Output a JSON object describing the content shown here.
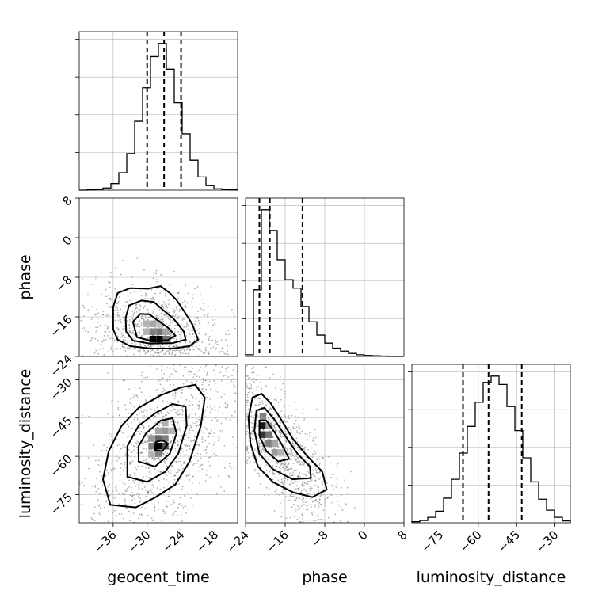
{
  "chart_data": {
    "type": "corner",
    "parameters": [
      "geocent_time",
      "phase",
      "luminosity_distance"
    ],
    "axis_labels": {
      "x": [
        "geocent_time",
        "phase",
        "luminosity_distance"
      ],
      "y": [
        "",
        "phase",
        "luminosity_distance"
      ]
    },
    "ranges": {
      "geocent_time": [
        -42,
        -14
      ],
      "phase": [
        -24,
        8
      ],
      "luminosity_distance": [
        -86,
        -24
      ]
    },
    "ticks": {
      "geocent_time": {
        "values": [
          -36,
          -30,
          -24,
          -18
        ],
        "labels": [
          "−36",
          "−30",
          "−24",
          "−18"
        ]
      },
      "phase": {
        "values": [
          -24,
          -16,
          -8,
          0,
          8
        ],
        "labels": [
          "−24",
          "−16",
          "−8",
          "0",
          "8"
        ]
      },
      "luminosity_distance": {
        "values": [
          -75,
          -60,
          -45,
          -30
        ],
        "labels": [
          "−75",
          "−60",
          "−45",
          "−30"
        ]
      }
    },
    "grid": true,
    "marginals": [
      {
        "parameter": "geocent_time",
        "bin_edges": [
          -42,
          -40.6,
          -39.2,
          -37.8,
          -36.4,
          -35,
          -33.6,
          -32.2,
          -30.8,
          -29.4,
          -28,
          -26.6,
          -25.2,
          -23.8,
          -22.4,
          -21,
          -19.6,
          -18.2,
          -16.8,
          -15.4,
          -14
        ],
        "counts": [
          0,
          2,
          5,
          18,
          55,
          145,
          305,
          575,
          855,
          1115,
          1225,
          1010,
          730,
          470,
          250,
          110,
          38,
          11,
          4,
          2
        ],
        "quantiles": [
          -30,
          -27,
          -24
        ]
      },
      {
        "parameter": "phase",
        "bin_edges": [
          -24,
          -22.4,
          -20.8,
          -19.2,
          -17.6,
          -16,
          -14.4,
          -12.8,
          -11.2,
          -9.6,
          -8,
          -6.4,
          -4.8,
          -3.2,
          -1.6,
          0,
          1.6,
          3.2,
          4.8,
          6.4,
          8
        ],
        "counts": [
          5,
          200,
          440,
          378,
          290,
          230,
          205,
          150,
          104,
          64,
          40,
          25,
          16,
          9,
          5,
          3,
          2,
          1,
          0,
          0
        ],
        "quantiles": [
          -21.2,
          -19.1,
          -12.5
        ]
      },
      {
        "parameter": "luminosity_distance",
        "bin_edges": [
          -86,
          -82.9,
          -79.8,
          -76.7,
          -73.6,
          -70.5,
          -67.4,
          -64.3,
          -61.2,
          -58.1,
          -55,
          -51.9,
          -48.8,
          -45.7,
          -42.6,
          -39.5,
          -36.4,
          -33.3,
          -30.2,
          -27.1,
          -24
        ],
        "counts": [
          10,
          22,
          52,
          110,
          235,
          415,
          665,
          920,
          1150,
          1340,
          1400,
          1320,
          1110,
          880,
          620,
          390,
          225,
          120,
          52,
          18
        ],
        "quantiles": [
          -66,
          -56,
          -43
        ]
      }
    ],
    "joint": [
      {
        "x": "geocent_time",
        "y": "phase",
        "center": [
          -27.5,
          -20.5
        ],
        "contours": [
          [
            [
              -36,
              -14
            ],
            [
              -35.2,
              -11.2
            ],
            [
              -33,
              -10.2
            ],
            [
              -29.8,
              -10.3
            ],
            [
              -27.6,
              -9.8
            ],
            [
              -26,
              -11.2
            ],
            [
              -24.8,
              -12.6
            ],
            [
              -23.5,
              -14.8
            ],
            [
              -22,
              -17.5
            ],
            [
              -21,
              -20.6
            ],
            [
              -22.5,
              -21.9
            ],
            [
              -25.5,
              -22.4
            ],
            [
              -29.5,
              -22.4
            ],
            [
              -33,
              -21.9
            ],
            [
              -35.2,
              -20.6
            ],
            [
              -36,
              -18.5
            ]
          ],
          [
            [
              -33.8,
              -16.2
            ],
            [
              -33.2,
              -13.7
            ],
            [
              -31,
              -12.7
            ],
            [
              -28.8,
              -13
            ],
            [
              -27.2,
              -14.6
            ],
            [
              -25.3,
              -16.4
            ],
            [
              -23.5,
              -19
            ],
            [
              -23.2,
              -20.6
            ],
            [
              -25.5,
              -21.3
            ],
            [
              -29.5,
              -21.4
            ],
            [
              -32.5,
              -20.8
            ],
            [
              -33.7,
              -19
            ]
          ],
          [
            [
              -32.5,
              -17
            ],
            [
              -31.2,
              -15.4
            ],
            [
              -29.6,
              -15.5
            ],
            [
              -28,
              -16.8
            ],
            [
              -26.3,
              -18.2
            ],
            [
              -25,
              -19.8
            ],
            [
              -26.3,
              -20.7
            ],
            [
              -29.5,
              -20.8
            ],
            [
              -31.8,
              -20.1
            ]
          ]
        ],
        "density_cells": [
          [
            -29,
            -20.5,
            1
          ],
          [
            -27.8,
            -20.5,
            1
          ],
          [
            -26.6,
            -20.5,
            0.55
          ],
          [
            -30.2,
            -19,
            0.3
          ],
          [
            -29,
            -19,
            0.5
          ],
          [
            -27.8,
            -19,
            0.55
          ],
          [
            -26.6,
            -19,
            0.35
          ],
          [
            -30.2,
            -17.4,
            0.3
          ],
          [
            -29,
            -17.4,
            0.35
          ],
          [
            -27.8,
            -17.4,
            0.25
          ]
        ]
      },
      {
        "x": "geocent_time",
        "y": "luminosity_distance",
        "center": [
          -27,
          -56
        ],
        "contours": [
          [
            [
              -36.5,
              -79
            ],
            [
              -32,
              -80
            ],
            [
              -28.5,
              -76
            ],
            [
              -25,
              -71
            ],
            [
              -22.5,
              -62
            ],
            [
              -20.5,
              -48
            ],
            [
              -19.8,
              -37
            ],
            [
              -21.5,
              -32
            ],
            [
              -24,
              -33
            ],
            [
              -27.5,
              -36
            ],
            [
              -31.5,
              -41
            ],
            [
              -34.5,
              -48
            ],
            [
              -36.8,
              -58
            ],
            [
              -37.8,
              -69
            ]
          ],
          [
            [
              -33.5,
              -68
            ],
            [
              -30,
              -70
            ],
            [
              -26.8,
              -66
            ],
            [
              -24.5,
              -59
            ],
            [
              -23,
              -48
            ],
            [
              -23.2,
              -40.5
            ],
            [
              -25.5,
              -39.5
            ],
            [
              -28.5,
              -43
            ],
            [
              -31.5,
              -48
            ],
            [
              -33.5,
              -56
            ]
          ],
          [
            [
              -31.5,
              -62
            ],
            [
              -28.6,
              -64
            ],
            [
              -26,
              -59
            ],
            [
              -24.8,
              -51
            ],
            [
              -25.5,
              -45
            ],
            [
              -27.6,
              -46
            ],
            [
              -30.2,
              -51
            ],
            [
              -31.5,
              -56
            ]
          ],
          [
            [
              -28.6,
              -57.5
            ],
            [
              -27.3,
              -58
            ],
            [
              -26.3,
              -55
            ],
            [
              -27.4,
              -53.6
            ],
            [
              -28.5,
              -54.5
            ]
          ]
        ],
        "density_cells": [
          [
            -28,
            -56,
            1
          ],
          [
            -26.8,
            -56,
            0.7
          ],
          [
            -29.2,
            -56,
            0.5
          ],
          [
            -28,
            -53,
            0.6
          ],
          [
            -26.8,
            -53,
            0.5
          ],
          [
            -28,
            -59,
            0.5
          ],
          [
            -26.8,
            -50,
            0.4
          ],
          [
            -28,
            -50,
            0.35
          ],
          [
            -26.8,
            -47,
            0.3
          ],
          [
            -29.2,
            -59,
            0.3
          ],
          [
            -29.2,
            -53,
            0.4
          ],
          [
            -25.6,
            -50,
            0.3
          ]
        ]
      },
      {
        "x": "phase",
        "y": "luminosity_distance",
        "center": [
          -18,
          -55
        ],
        "contours": [
          [
            [
              -22.6,
              -37
            ],
            [
              -20.8,
              -35.5
            ],
            [
              -19,
              -39
            ],
            [
              -17,
              -45
            ],
            [
              -14.5,
              -53
            ],
            [
              -11.5,
              -60
            ],
            [
              -8.5,
              -66
            ],
            [
              -7.6,
              -73
            ],
            [
              -10.5,
              -76
            ],
            [
              -14.5,
              -74
            ],
            [
              -18.5,
              -70
            ],
            [
              -21.5,
              -64
            ],
            [
              -23,
              -55
            ],
            [
              -23.4,
              -45
            ]
          ],
          [
            [
              -21.8,
              -42
            ],
            [
              -20.2,
              -41
            ],
            [
              -18.2,
              -45.5
            ],
            [
              -16,
              -52
            ],
            [
              -13.5,
              -59
            ],
            [
              -11,
              -64
            ],
            [
              -10.8,
              -68.5
            ],
            [
              -14.5,
              -69
            ],
            [
              -18.5,
              -65
            ],
            [
              -21.2,
              -59
            ],
            [
              -22.2,
              -50
            ]
          ],
          [
            [
              -21.2,
              -46
            ],
            [
              -19.8,
              -46
            ],
            [
              -18,
              -51
            ],
            [
              -16.5,
              -56
            ],
            [
              -15.2,
              -61
            ],
            [
              -17.4,
              -62
            ],
            [
              -19.8,
              -58
            ],
            [
              -21.2,
              -52
            ]
          ]
        ],
        "density_cells": [
          [
            -20.5,
            -48,
            0.9
          ],
          [
            -20.5,
            -51.5,
            0.8
          ],
          [
            -19.3,
            -51.5,
            0.55
          ],
          [
            -19.3,
            -55,
            0.5
          ],
          [
            -18.1,
            -58.5,
            0.4
          ],
          [
            -20.5,
            -44.5,
            0.5
          ],
          [
            -16.9,
            -58.5,
            0.3
          ],
          [
            -19.3,
            -48,
            0.4
          ],
          [
            -18.1,
            -55,
            0.35
          ]
        ]
      }
    ]
  },
  "colors": {
    "ink": "#000000",
    "samples": "#555555",
    "grid": "#b0b0b0"
  }
}
